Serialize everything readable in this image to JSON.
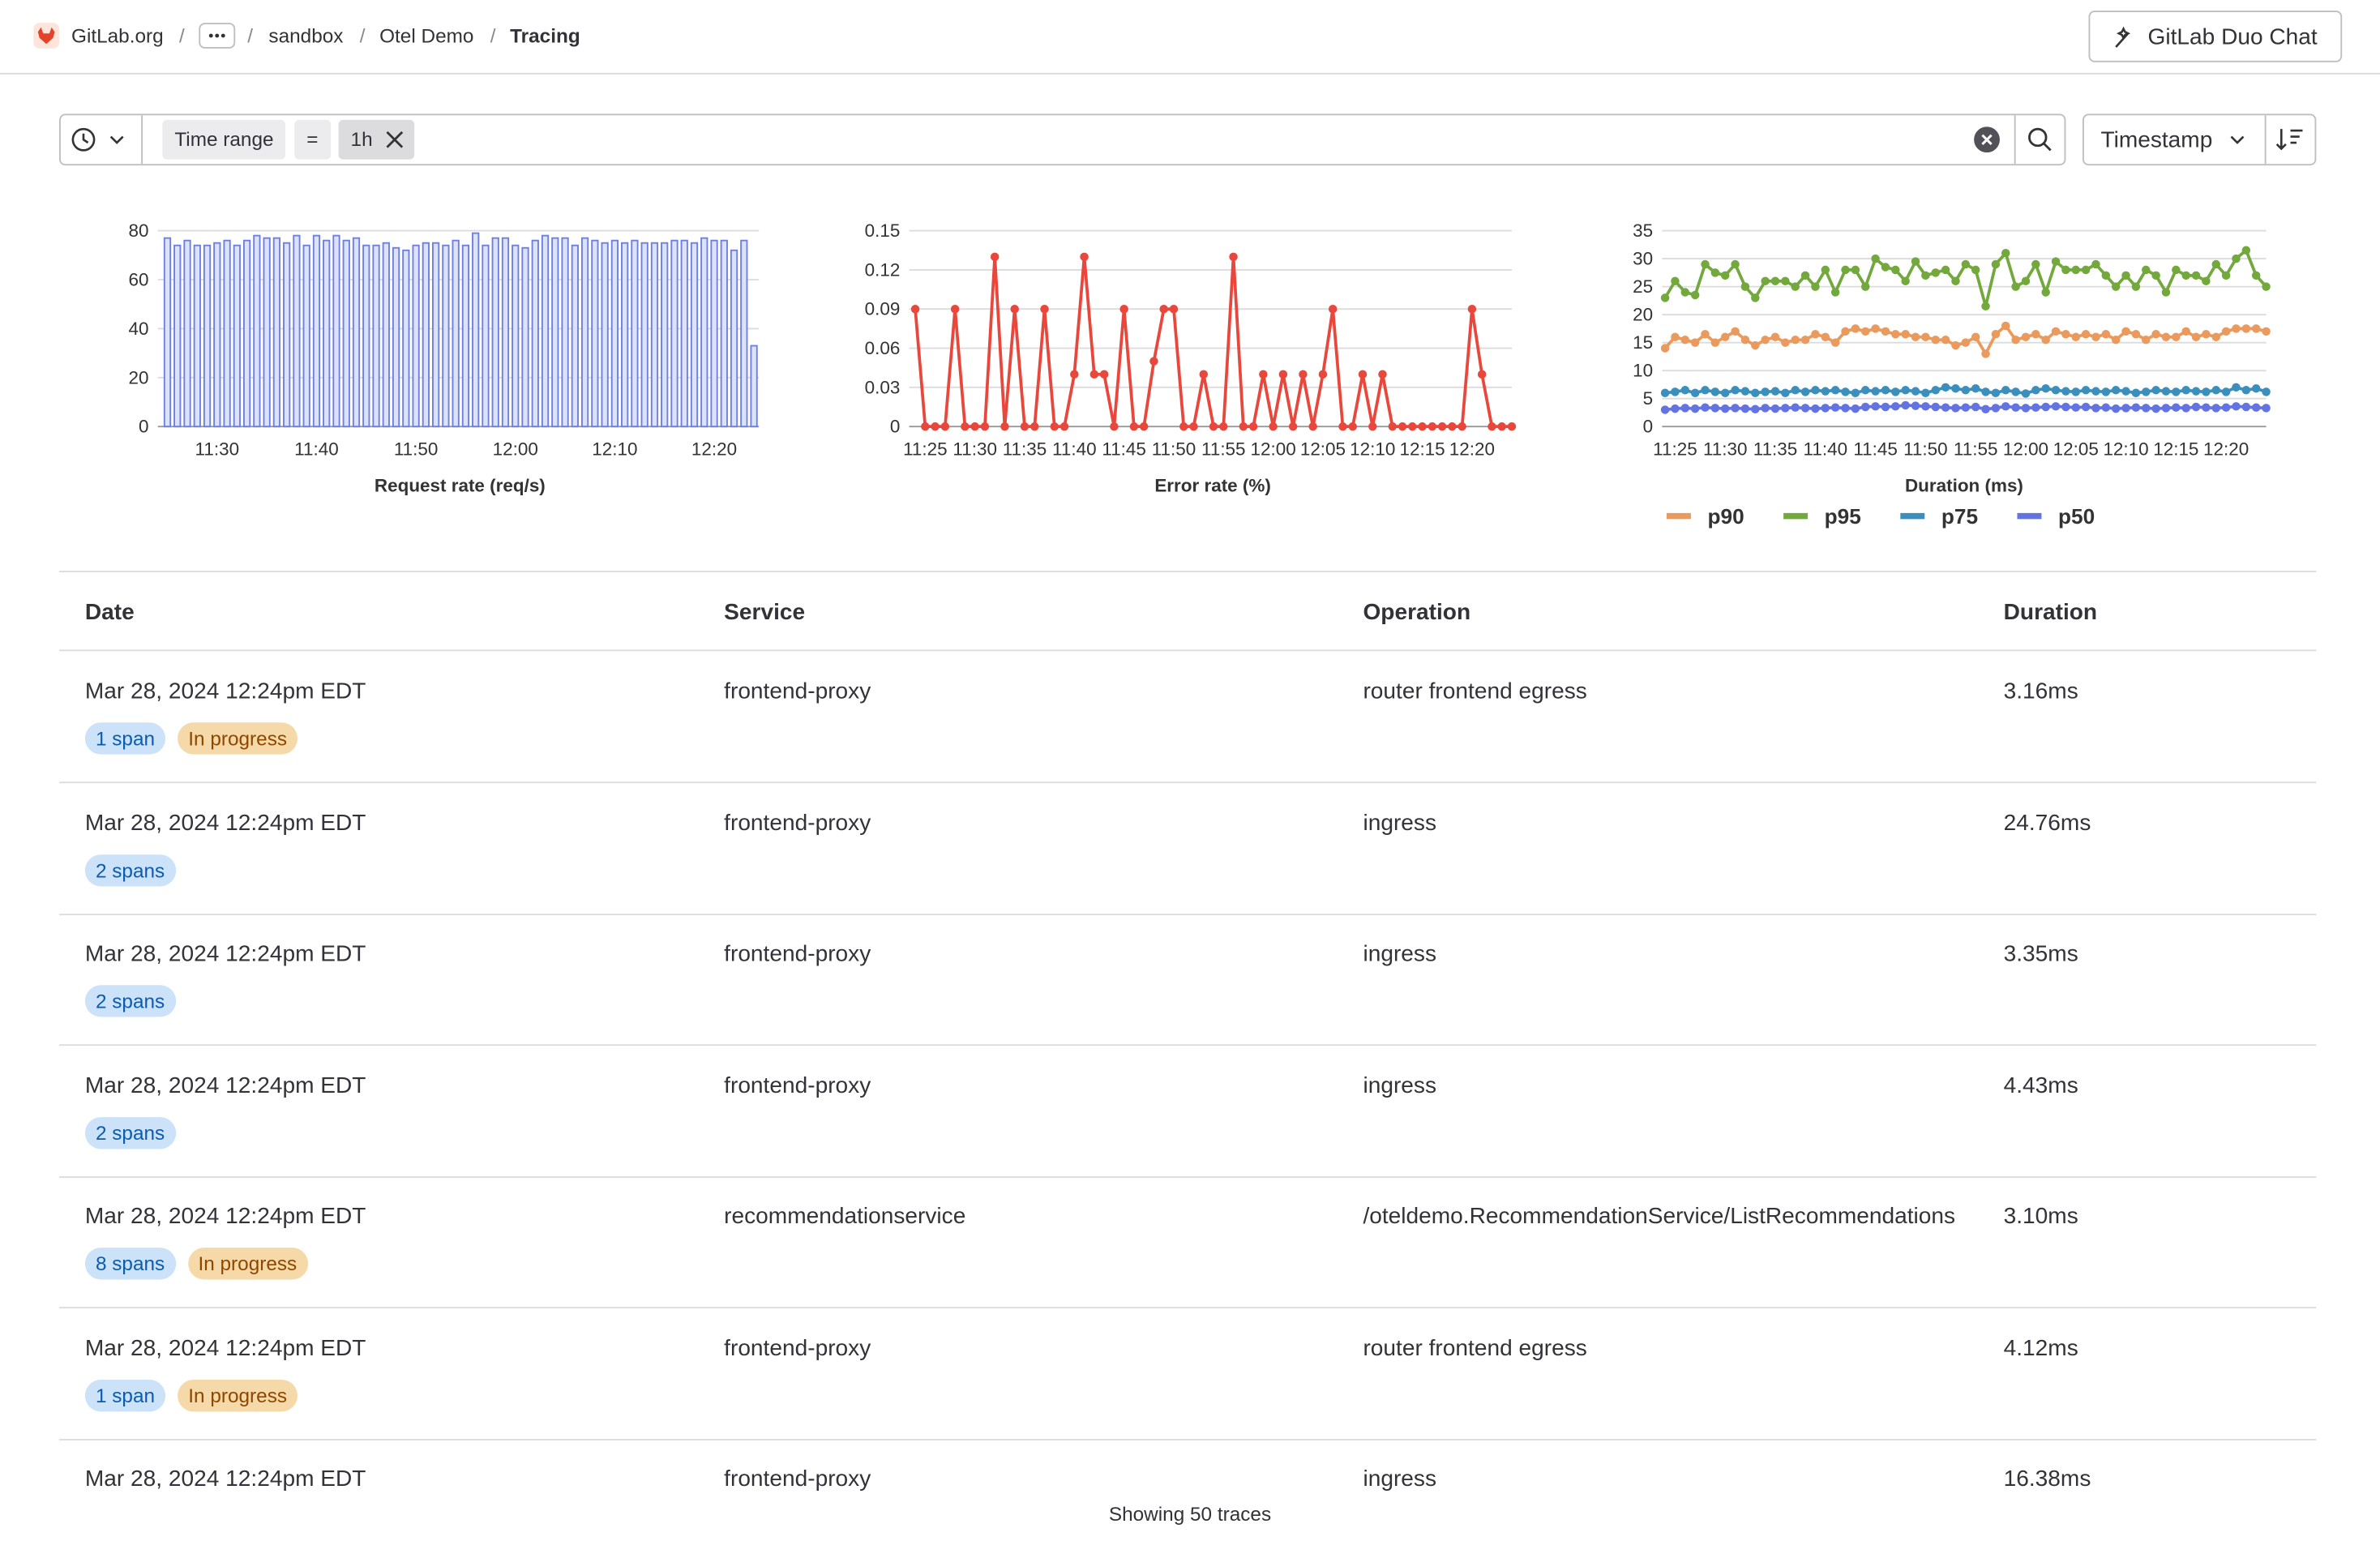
{
  "breadcrumb": [
    "GitLab.org",
    "sandbox",
    "Otel Demo",
    "Tracing"
  ],
  "duo_button": "GitLab Duo Chat",
  "filter": {
    "token_name": "Time range",
    "operator": "=",
    "value": "1h"
  },
  "sort": "Timestamp",
  "chart_data": [
    {
      "type": "bar",
      "xlabel": "Request rate (req/s)",
      "color": "#6d7fe0",
      "categories": [
        null,
        null,
        null,
        null,
        null,
        "11:30",
        null,
        null,
        null,
        null,
        null,
        null,
        null,
        null,
        null,
        "11:40",
        null,
        null,
        null,
        null,
        null,
        null,
        null,
        null,
        null,
        "11:50",
        null,
        null,
        null,
        null,
        null,
        null,
        null,
        null,
        null,
        "12:00",
        null,
        null,
        null,
        null,
        null,
        null,
        null,
        null,
        null,
        "12:10",
        null,
        null,
        null,
        null,
        null,
        null,
        null,
        null,
        null,
        "12:20",
        null,
        null,
        null,
        null
      ],
      "values": [
        77,
        74,
        76,
        74,
        74,
        75,
        76,
        74,
        76,
        78,
        77,
        77,
        75,
        78,
        74,
        78,
        76,
        78,
        76,
        77,
        74,
        74,
        75,
        73,
        72,
        74,
        75,
        75,
        74,
        76,
        74,
        79,
        74,
        77,
        77,
        74,
        73,
        76,
        78,
        77,
        77,
        74,
        77,
        76,
        75,
        76,
        75,
        76,
        75,
        75,
        75,
        76,
        76,
        75,
        77,
        76,
        76,
        72,
        76,
        33
      ],
      "ylim": [
        0,
        80
      ],
      "yticks": [
        0,
        20,
        40,
        60,
        80
      ],
      "grid": true
    },
    {
      "type": "line",
      "xlabel": "Error rate (%)",
      "color": "#e9473b",
      "categories": [
        null,
        "11:25",
        null,
        null,
        null,
        null,
        "11:30",
        null,
        null,
        null,
        null,
        "11:35",
        null,
        null,
        null,
        null,
        "11:40",
        null,
        null,
        null,
        null,
        "11:45",
        null,
        null,
        null,
        null,
        "11:50",
        null,
        null,
        null,
        null,
        "11:55",
        null,
        null,
        null,
        null,
        "12:00",
        null,
        null,
        null,
        null,
        "12:05",
        null,
        null,
        null,
        null,
        "12:10",
        null,
        null,
        null,
        null,
        "12:15",
        null,
        null,
        null,
        null,
        "12:20",
        null,
        null,
        null,
        null
      ],
      "values": [
        0.09,
        0,
        0,
        0,
        0.09,
        0,
        0,
        0,
        0.13,
        0,
        0.09,
        0,
        0,
        0.09,
        0,
        0,
        0.04,
        0.13,
        0.04,
        0.04,
        0,
        0.09,
        0,
        0,
        0.05,
        0.09,
        0.09,
        0,
        0,
        0.04,
        0,
        0,
        0.13,
        0,
        0,
        0.04,
        0,
        0.04,
        0,
        0.04,
        0,
        0.04,
        0.09,
        0,
        0,
        0.04,
        0,
        0.04,
        0,
        0,
        0,
        0,
        0,
        0,
        0,
        0,
        0.09,
        0.04,
        0,
        0,
        0
      ],
      "ylim": [
        0,
        0.15
      ],
      "yticks": [
        0,
        0.03,
        0.06,
        0.09,
        0.12,
        0.15
      ],
      "grid": true
    },
    {
      "type": "line",
      "xlabel": "Duration (ms)",
      "categories": [
        null,
        "11:25",
        null,
        null,
        null,
        null,
        "11:30",
        null,
        null,
        null,
        null,
        "11:35",
        null,
        null,
        null,
        null,
        "11:40",
        null,
        null,
        null,
        null,
        "11:45",
        null,
        null,
        null,
        null,
        "11:50",
        null,
        null,
        null,
        null,
        "11:55",
        null,
        null,
        null,
        null,
        "12:00",
        null,
        null,
        null,
        null,
        "12:05",
        null,
        null,
        null,
        null,
        "12:10",
        null,
        null,
        null,
        null,
        "12:15",
        null,
        null,
        null,
        null,
        "12:20",
        null,
        null,
        null,
        null
      ],
      "series": [
        {
          "name": "p90",
          "color": "#e99a5c",
          "values": [
            14,
            16,
            15.5,
            15,
            16.5,
            15,
            16,
            17,
            15.5,
            14.5,
            15.5,
            16,
            15,
            15.5,
            15.5,
            16.5,
            16,
            15,
            17,
            17.5,
            17,
            17.5,
            17,
            16.5,
            16.5,
            16,
            16,
            15.5,
            15.5,
            14.5,
            15,
            16,
            13,
            16.5,
            18,
            15.5,
            16,
            16.5,
            15.5,
            17,
            16.5,
            16,
            16.5,
            16,
            16.5,
            15.5,
            17,
            16.5,
            15.5,
            16.5,
            16,
            16,
            17,
            16,
            16.5,
            16,
            17,
            17.5,
            17.5,
            17.5,
            17
          ]
        },
        {
          "name": "p95",
          "color": "#72a83c",
          "values": [
            23,
            26,
            24,
            23.5,
            29,
            27.5,
            27,
            29,
            25,
            23,
            26,
            26,
            26,
            25,
            27,
            25,
            28,
            24,
            28,
            28,
            25,
            30,
            28.5,
            28,
            26,
            29.5,
            27,
            27.5,
            28,
            26,
            29,
            28,
            21.5,
            29,
            31,
            25,
            26,
            29,
            24,
            29.5,
            28,
            28,
            28,
            29,
            27,
            25,
            27,
            25,
            28,
            27,
            24,
            28,
            27,
            27,
            26,
            29,
            27,
            30,
            31.5,
            27,
            25
          ]
        },
        {
          "name": "p75",
          "color": "#3a8fbc",
          "values": [
            6,
            6.2,
            6.5,
            6,
            6.5,
            6.2,
            6,
            6.5,
            6.3,
            6,
            6.2,
            6.3,
            6,
            6.5,
            6.2,
            6.5,
            6.3,
            6.5,
            6.2,
            6,
            6.5,
            6.3,
            6.5,
            6.2,
            6.5,
            6.3,
            6,
            6.5,
            7,
            6.8,
            6.5,
            6.8,
            6.2,
            6,
            6.5,
            6.2,
            5.9,
            6.5,
            6.8,
            6.5,
            6.3,
            6.2,
            6.5,
            6.3,
            6.2,
            6.5,
            6.3,
            6,
            6.2,
            6.5,
            6.3,
            6.2,
            6.5,
            6.3,
            6.2,
            6.5,
            6.2,
            7,
            6.5,
            6.8,
            6.2
          ]
        },
        {
          "name": "p50",
          "color": "#6374e2",
          "values": [
            3,
            3.2,
            3.3,
            3.2,
            3.4,
            3.3,
            3.2,
            3.3,
            3.2,
            3.1,
            3.3,
            3.2,
            3.3,
            3.4,
            3.3,
            3.2,
            3.3,
            3.4,
            3.3,
            3.2,
            3.5,
            3.6,
            3.5,
            3.6,
            3.8,
            3.7,
            3.6,
            3.5,
            3.4,
            3.3,
            3.4,
            3.5,
            3.1,
            3.3,
            3.6,
            3.4,
            3.3,
            3.4,
            3.5,
            3.6,
            3.5,
            3.4,
            3.5,
            3.3,
            3.4,
            3.2,
            3.3,
            3.4,
            3.3,
            3.2,
            3.3,
            3.4,
            3.3,
            3.5,
            3.4,
            3.3,
            3.4,
            3.6,
            3.5,
            3.4,
            3.3
          ]
        }
      ],
      "ylim": [
        0,
        35
      ],
      "yticks": [
        0,
        5,
        10,
        15,
        20,
        25,
        30,
        35
      ],
      "grid": true
    }
  ],
  "table": {
    "columns": [
      "Date",
      "Service",
      "Operation",
      "Duration"
    ],
    "rows": [
      {
        "date": "Mar 28, 2024 12:24pm EDT",
        "spans": "1 span",
        "status": "In progress",
        "service": "frontend-proxy",
        "operation": "router frontend egress",
        "duration": "3.16ms"
      },
      {
        "date": "Mar 28, 2024 12:24pm EDT",
        "spans": "2 spans",
        "service": "frontend-proxy",
        "operation": "ingress",
        "duration": "24.76ms"
      },
      {
        "date": "Mar 28, 2024 12:24pm EDT",
        "spans": "2 spans",
        "service": "frontend-proxy",
        "operation": "ingress",
        "duration": "3.35ms"
      },
      {
        "date": "Mar 28, 2024 12:24pm EDT",
        "spans": "2 spans",
        "service": "frontend-proxy",
        "operation": "ingress",
        "duration": "4.43ms"
      },
      {
        "date": "Mar 28, 2024 12:24pm EDT",
        "spans": "8 spans",
        "status": "In progress",
        "service": "recommendationservice",
        "operation": "/oteldemo.RecommendationService/ListRecommendations",
        "duration": "3.10ms"
      },
      {
        "date": "Mar 28, 2024 12:24pm EDT",
        "spans": "1 span",
        "status": "In progress",
        "service": "frontend-proxy",
        "operation": "router frontend egress",
        "duration": "4.12ms"
      },
      {
        "date": "Mar 28, 2024 12:24pm EDT",
        "service": "frontend-proxy",
        "operation": "ingress",
        "duration": "16.38ms"
      }
    ]
  },
  "footer": "Showing 50 traces"
}
